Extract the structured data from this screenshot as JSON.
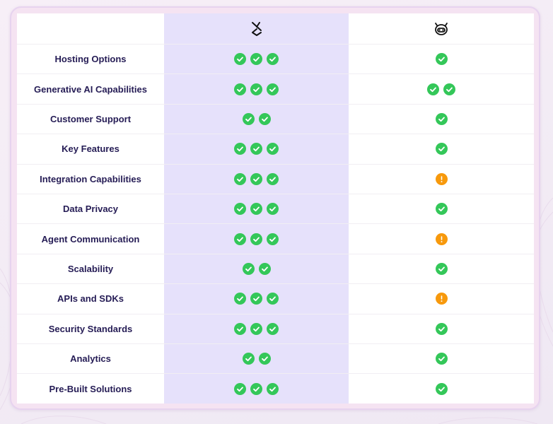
{
  "colors": {
    "check": "#34c759",
    "warning": "#f7990c",
    "label_text": "#251c55",
    "highlight_column": "#e6e1fb",
    "frame_border": "#e7d3ef"
  },
  "header": {
    "col_a_logo": "product-a-logo-icon",
    "col_b_logo": "product-b-logo-icon"
  },
  "rows": [
    {
      "label": "Hosting Options",
      "a": [
        "check",
        "check",
        "check"
      ],
      "b": [
        "check"
      ]
    },
    {
      "label": "Generative AI Capabilities",
      "a": [
        "check",
        "check",
        "check"
      ],
      "b": [
        "check",
        "check"
      ]
    },
    {
      "label": "Customer Support",
      "a": [
        "check",
        "check"
      ],
      "b": [
        "check"
      ]
    },
    {
      "label": "Key Features",
      "a": [
        "check",
        "check",
        "check"
      ],
      "b": [
        "check"
      ]
    },
    {
      "label": "Integration Capabilities",
      "a": [
        "check",
        "check",
        "check"
      ],
      "b": [
        "warning"
      ]
    },
    {
      "label": "Data Privacy",
      "a": [
        "check",
        "check",
        "check"
      ],
      "b": [
        "check"
      ]
    },
    {
      "label": "Agent Communication",
      "a": [
        "check",
        "check",
        "check"
      ],
      "b": [
        "warning"
      ]
    },
    {
      "label": "Scalability",
      "a": [
        "check",
        "check"
      ],
      "b": [
        "check"
      ]
    },
    {
      "label": "APIs and SDKs",
      "a": [
        "check",
        "check",
        "check"
      ],
      "b": [
        "warning"
      ]
    },
    {
      "label": "Security Standards",
      "a": [
        "check",
        "check",
        "check"
      ],
      "b": [
        "check"
      ]
    },
    {
      "label": "Analytics",
      "a": [
        "check",
        "check"
      ],
      "b": [
        "check"
      ]
    },
    {
      "label": "Pre-Built Solutions",
      "a": [
        "check",
        "check",
        "check"
      ],
      "b": [
        "check"
      ]
    }
  ]
}
